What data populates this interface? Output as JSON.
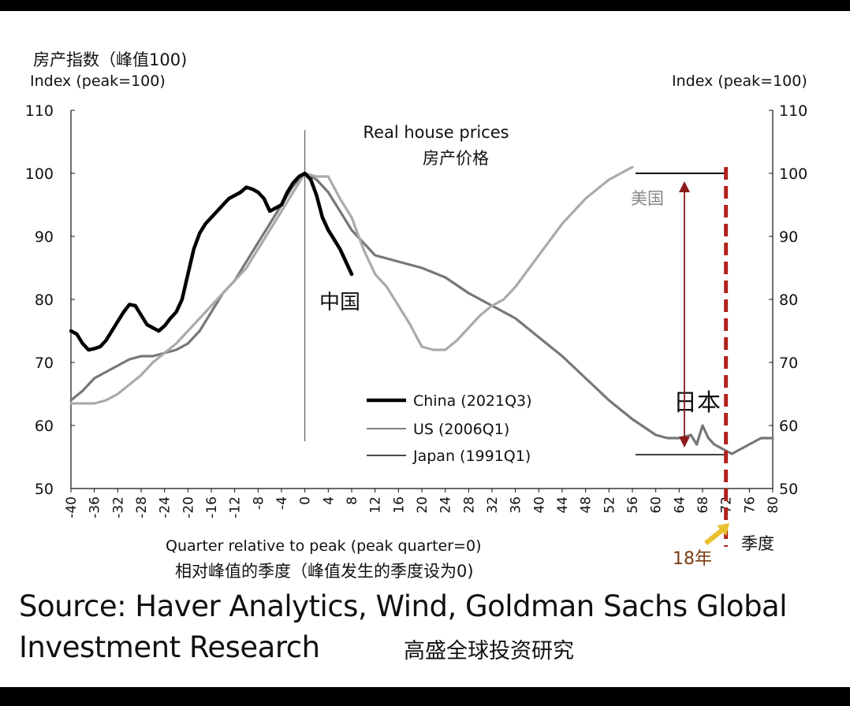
{
  "chart_data": {
    "type": "line",
    "title": "Real house prices",
    "title_cn": "房产价格",
    "ylabel_cn": "房产指数（峰值100)",
    "ylabel": "Index (peak=100)",
    "ylabel_right": "Index (peak=100)",
    "xlabel": "Quarter relative to peak (peak quarter=0)",
    "xlabel_cn": "相对峰值的季度（峰值发生的季度设为0)",
    "xunit_cn": "季度",
    "ylim": [
      50,
      110
    ],
    "yticks": [
      "50",
      "60",
      "70",
      "80",
      "90",
      "100",
      "110"
    ],
    "xlim": [
      -40,
      80
    ],
    "xticks": [
      "-40",
      "-36",
      "-32",
      "-28",
      "-24",
      "-20",
      "-16",
      "-12",
      "-8",
      "-4",
      "0",
      "4",
      "8",
      "12",
      "16",
      "20",
      "24",
      "28",
      "32",
      "36",
      "40",
      "44",
      "48",
      "52",
      "56",
      "60",
      "64",
      "68",
      "72",
      "76",
      "80"
    ],
    "legend_position": "center-bottom",
    "series": [
      {
        "name": "China (2021Q3)",
        "label_cn": "中国",
        "color": "#000000",
        "x": [
          -40,
          -39,
          -38,
          -37,
          -36,
          -35,
          -34,
          -33,
          -32,
          -31,
          -30,
          -29,
          -28,
          -27,
          -26,
          -25,
          -24,
          -23,
          -22,
          -21,
          -20,
          -19,
          -18,
          -17,
          -16,
          -15,
          -14,
          -13,
          -12,
          -11,
          -10,
          -9,
          -8,
          -7,
          -6,
          -5,
          -4,
          -3,
          -2,
          -1,
          0,
          1,
          2,
          3,
          4,
          5,
          6,
          7,
          8
        ],
        "y": [
          75,
          74.5,
          73,
          72,
          72.2,
          72.5,
          73.5,
          75,
          76.5,
          78,
          79.2,
          79,
          77.5,
          76,
          75.5,
          75,
          75.8,
          77,
          78,
          80,
          84,
          88,
          90.5,
          92,
          93,
          94,
          95,
          96,
          96.5,
          97,
          97.8,
          97.5,
          97,
          96,
          94,
          94.5,
          95,
          97,
          98.5,
          99.5,
          100,
          99,
          96.5,
          93,
          91,
          89.5,
          88,
          86,
          84
        ]
      },
      {
        "name": "US (2006Q1)",
        "label_cn": "美国",
        "color": "#aaaaaa",
        "x": [
          -40,
          -38,
          -36,
          -34,
          -32,
          -30,
          -28,
          -26,
          -24,
          -22,
          -20,
          -18,
          -16,
          -14,
          -12,
          -10,
          -8,
          -6,
          -4,
          -2,
          0,
          2,
          4,
          6,
          8,
          10,
          12,
          14,
          16,
          18,
          20,
          22,
          24,
          26,
          28,
          30,
          32,
          34,
          36,
          38,
          40,
          42,
          44,
          46,
          48,
          50,
          52,
          54,
          56
        ],
        "y": [
          63.5,
          63.5,
          63.5,
          64,
          65,
          66.5,
          68,
          70,
          71.5,
          73,
          75,
          77,
          79,
          81,
          83,
          85,
          88,
          91,
          94,
          97,
          100,
          99.5,
          99.5,
          96,
          93,
          88,
          84,
          82,
          79,
          76,
          72.5,
          72,
          72,
          73.5,
          75.5,
          77.5,
          79,
          80,
          82,
          84.5,
          87,
          89.5,
          92,
          94,
          96,
          97.5,
          99,
          100,
          101
        ]
      },
      {
        "name": "Japan (1991Q1)",
        "label_cn": "日本",
        "color": "#777777",
        "x": [
          -40,
          -38,
          -36,
          -34,
          -32,
          -30,
          -28,
          -26,
          -24,
          -22,
          -20,
          -18,
          -16,
          -14,
          -12,
          -10,
          -8,
          -6,
          -4,
          -2,
          0,
          2,
          4,
          6,
          8,
          10,
          12,
          16,
          20,
          24,
          28,
          32,
          36,
          40,
          44,
          48,
          52,
          56,
          60,
          62,
          64,
          66,
          67,
          68,
          69,
          70,
          72,
          73,
          74,
          76,
          78,
          80
        ],
        "y": [
          64,
          65.5,
          67.5,
          68.5,
          69.5,
          70.5,
          71,
          71,
          71.5,
          72,
          73,
          75,
          78,
          81,
          83,
          86,
          89,
          92,
          95,
          98,
          100,
          99,
          97,
          94,
          91,
          89,
          87,
          86,
          85,
          83.5,
          81,
          79,
          77,
          74,
          71,
          67.5,
          64,
          61,
          58.5,
          58,
          58,
          58.5,
          57,
          60,
          58,
          57,
          56,
          55.5,
          56,
          57,
          58,
          58
        ]
      }
    ],
    "annotations": [
      {
        "text": "18年",
        "color": "#7a3b12"
      }
    ]
  },
  "legend": [
    {
      "label": "China (2021Q3)",
      "color": "#000000"
    },
    {
      "label": "US (2006Q1)",
      "color": "#aaaaaa"
    },
    {
      "label": "Japan (1991Q1)",
      "color": "#777777"
    }
  ],
  "source": {
    "line1": "Source: Haver Analytics, Wind, Goldman Sachs Global",
    "line2": "Investment Research",
    "cn": "高盛全球投资研究"
  },
  "colors": {
    "marker_dash": "#b0221c",
    "arrow_red": "#8b1a1a",
    "arrow_yellow": "#e8c22e"
  }
}
